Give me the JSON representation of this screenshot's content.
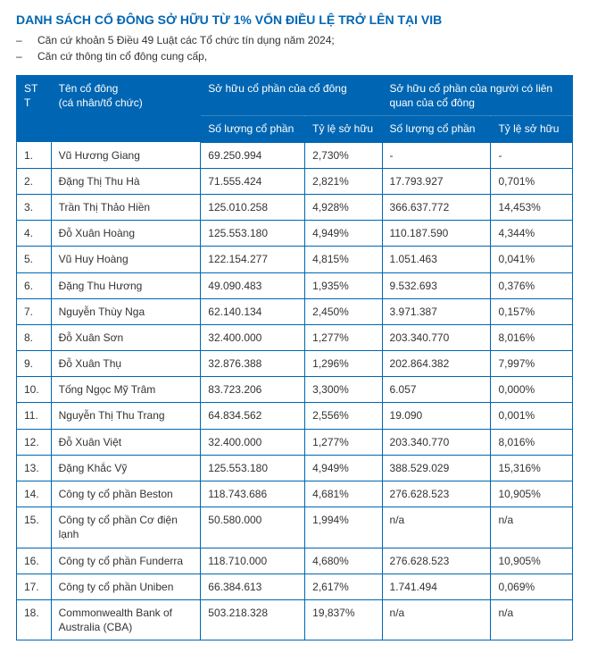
{
  "title": "DANH SÁCH CỔ ĐÔNG SỞ HỮU TỪ 1% VỐN ĐIỀU LỆ TRỞ LÊN TẠI VIB",
  "citations": [
    "Căn cứ khoản 5 Điều 49 Luật các Tổ chức tín dụng năm 2024;",
    "Căn cứ thông tin cổ đông cung cấp,"
  ],
  "colors": {
    "brand": "#0066b3",
    "text": "#333333",
    "header_text": "#ffffff",
    "background": "#ffffff",
    "border": "#0066b3"
  },
  "table": {
    "headers": {
      "stt": "STT",
      "shareholder": "Tên cổ đông",
      "shareholder_sub": "(cá nhân/tổ chức)",
      "own_group": "Sở hữu cổ phần của cổ đông",
      "related_group": "Sở hữu cổ phần của người có liên quan của cổ đông",
      "qty": "Số lượng cổ phần",
      "pct": "Tỷ lệ sở hữu"
    },
    "rows": [
      {
        "stt": "1.",
        "name": "Vũ Hương Giang",
        "qty": "69.250.994",
        "pct": "2,730%",
        "rqty": "-",
        "rpct": "-"
      },
      {
        "stt": "2.",
        "name": "Đặng Thị Thu Hà",
        "qty": "71.555.424",
        "pct": "2,821%",
        "rqty": "17.793.927",
        "rpct": "0,701%"
      },
      {
        "stt": "3.",
        "name": "Trần Thị Thảo Hiền",
        "qty": "125.010.258",
        "pct": "4,928%",
        "rqty": "366.637.772",
        "rpct": "14,453%"
      },
      {
        "stt": "4.",
        "name": "Đỗ Xuân Hoàng",
        "qty": "125.553.180",
        "pct": "4,949%",
        "rqty": "110.187.590",
        "rpct": "4,344%"
      },
      {
        "stt": "5.",
        "name": "Vũ Huy Hoàng",
        "qty": "122.154.277",
        "pct": "4,815%",
        "rqty": "1.051.463",
        "rpct": "0,041%"
      },
      {
        "stt": "6.",
        "name": "Đặng Thu Hương",
        "qty": "49.090.483",
        "pct": "1,935%",
        "rqty": "9.532.693",
        "rpct": "0,376%"
      },
      {
        "stt": "7.",
        "name": "Nguyễn Thùy Nga",
        "qty": "62.140.134",
        "pct": "2,450%",
        "rqty": "3.971.387",
        "rpct": "0,157%"
      },
      {
        "stt": "8.",
        "name": "Đỗ Xuân Sơn",
        "qty": "32.400.000",
        "pct": "1,277%",
        "rqty": "203.340.770",
        "rpct": "8,016%"
      },
      {
        "stt": "9.",
        "name": "Đỗ Xuân Thụ",
        "qty": "32.876.388",
        "pct": "1,296%",
        "rqty": "202.864.382",
        "rpct": "7,997%"
      },
      {
        "stt": "10.",
        "name": "Tống Ngọc Mỹ Trâm",
        "qty": "83.723.206",
        "pct": "3,300%",
        "rqty": "6.057",
        "rpct": "0,000%"
      },
      {
        "stt": "11.",
        "name": "Nguyễn Thị Thu Trang",
        "qty": "64.834.562",
        "pct": "2,556%",
        "rqty": "19.090",
        "rpct": "0,001%"
      },
      {
        "stt": "12.",
        "name": "Đỗ Xuân Việt",
        "qty": "32.400.000",
        "pct": "1,277%",
        "rqty": "203.340.770",
        "rpct": "8,016%"
      },
      {
        "stt": "13.",
        "name": "Đặng Khắc Vỹ",
        "qty": "125.553.180",
        "pct": "4,949%",
        "rqty": "388.529.029",
        "rpct": "15,316%"
      },
      {
        "stt": "14.",
        "name": "Công ty cổ phần Beston",
        "qty": "118.743.686",
        "pct": "4,681%",
        "rqty": "276.628.523",
        "rpct": "10,905%"
      },
      {
        "stt": "15.",
        "name": "Công ty cổ phần Cơ điện lạnh",
        "qty": "50.580.000",
        "pct": "1,994%",
        "rqty": "n/a",
        "rpct": "n/a"
      },
      {
        "stt": "16.",
        "name": "Công ty cổ phần Funderra",
        "qty": "118.710.000",
        "pct": "4,680%",
        "rqty": "276.628.523",
        "rpct": "10,905%"
      },
      {
        "stt": "17.",
        "name": "Công ty cổ phần Uniben",
        "qty": "66.384.613",
        "pct": "2,617%",
        "rqty": "1.741.494",
        "rpct": "0,069%"
      },
      {
        "stt": "18.",
        "name": "Commonwealth Bank of Australia (CBA)",
        "qty": "503.218.328",
        "pct": "19,837%",
        "rqty": "n/a",
        "rpct": "n/a"
      }
    ]
  }
}
